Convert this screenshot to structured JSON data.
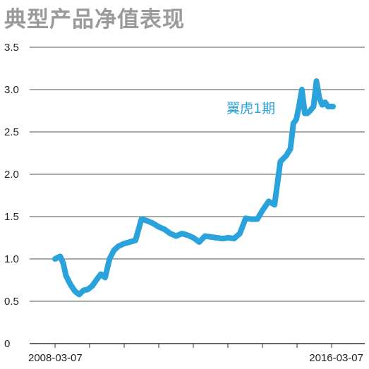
{
  "chart_data": {
    "type": "line",
    "title": "典型产品净值表现",
    "xlabel": "",
    "ylabel": "",
    "x_start": "2008-03-07",
    "x_end": "2016-03-07",
    "x_tick_labels": [
      "2008-03-07",
      "2016-03-07"
    ],
    "y_ticks": [
      "0",
      "0.5",
      "1.0",
      "1.5",
      "2.0",
      "2.5",
      "3.0",
      "3.5"
    ],
    "ylim": [
      0,
      3.5
    ],
    "grid": true,
    "line_color": "#2aa3dc",
    "series": [
      {
        "name": "翼虎1期",
        "x": [
          "2008-03-07",
          "2008-05-01",
          "2008-06-01",
          "2008-07-01",
          "2008-08-15",
          "2008-10-01",
          "2008-11-15",
          "2009-01-01",
          "2009-02-15",
          "2009-04-01",
          "2009-05-15",
          "2009-07-01",
          "2009-08-15",
          "2009-10-01",
          "2009-11-15",
          "2010-01-01",
          "2010-03-01",
          "2010-05-01",
          "2010-07-01",
          "2010-09-01",
          "2010-11-01",
          "2011-01-01",
          "2011-03-01",
          "2011-05-01",
          "2011-07-01",
          "2011-09-01",
          "2011-11-01",
          "2012-01-01",
          "2012-03-01",
          "2012-05-01",
          "2012-07-01",
          "2012-09-01",
          "2012-11-01",
          "2013-01-01",
          "2013-03-01",
          "2013-05-01",
          "2013-07-01",
          "2013-09-01",
          "2013-11-01",
          "2014-01-01",
          "2014-03-01",
          "2014-05-01",
          "2014-07-01",
          "2014-09-01",
          "2014-11-01",
          "2014-12-15",
          "2015-01-15",
          "2015-02-15",
          "2015-03-15",
          "2015-04-15",
          "2015-05-15",
          "2015-06-12",
          "2015-07-10",
          "2015-08-15",
          "2015-09-15",
          "2015-10-15",
          "2015-11-15",
          "2015-12-15",
          "2016-01-15",
          "2016-03-07"
        ],
        "values": [
          1.0,
          1.03,
          0.95,
          0.8,
          0.7,
          0.62,
          0.58,
          0.63,
          0.64,
          0.68,
          0.75,
          0.82,
          0.78,
          1.0,
          1.1,
          1.15,
          1.18,
          1.2,
          1.22,
          1.47,
          1.45,
          1.42,
          1.38,
          1.35,
          1.3,
          1.27,
          1.3,
          1.28,
          1.25,
          1.2,
          1.27,
          1.26,
          1.25,
          1.24,
          1.25,
          1.24,
          1.3,
          1.48,
          1.47,
          1.47,
          1.58,
          1.68,
          1.64,
          2.15,
          2.22,
          2.3,
          2.6,
          2.65,
          2.8,
          3.0,
          2.72,
          2.72,
          2.75,
          2.8,
          3.1,
          2.9,
          2.82,
          2.85,
          2.8,
          2.8
        ]
      }
    ]
  }
}
